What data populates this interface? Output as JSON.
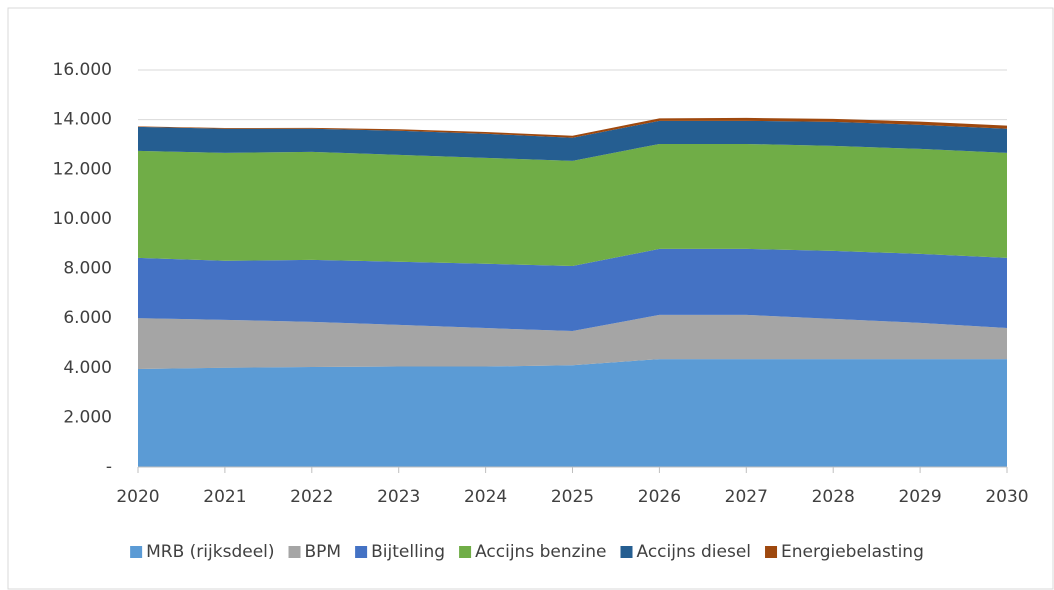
{
  "chart_data": {
    "type": "stacked_area",
    "categories": [
      "2020",
      "2021",
      "2022",
      "2023",
      "2024",
      "2025",
      "2026",
      "2027",
      "2028",
      "2029",
      "2030"
    ],
    "series": [
      {
        "name": "MRB (rijksdeel)",
        "color": "#5b9bd5",
        "values": [
          3950,
          4000,
          4030,
          4050,
          4050,
          4100,
          4350,
          4350,
          4350,
          4350,
          4350
        ]
      },
      {
        "name": "BPM",
        "color": "#a5a5a5",
        "values": [
          2050,
          1930,
          1820,
          1680,
          1550,
          1380,
          1780,
          1780,
          1620,
          1460,
          1250
        ]
      },
      {
        "name": "Bijtelling",
        "color": "#4472c4",
        "values": [
          2430,
          2380,
          2500,
          2540,
          2590,
          2620,
          2660,
          2660,
          2740,
          2780,
          2830
        ]
      },
      {
        "name": "Accijns benzine",
        "color": "#70ad47",
        "values": [
          4310,
          4350,
          4350,
          4310,
          4270,
          4240,
          4230,
          4230,
          4230,
          4230,
          4230
        ]
      },
      {
        "name": "Accijns diesel",
        "color": "#255e91",
        "values": [
          970,
          970,
          930,
          970,
          970,
          930,
          930,
          930,
          970,
          970,
          970
        ]
      },
      {
        "name": "Energiebelasting",
        "color": "#9e480e",
        "values": [
          20,
          30,
          40,
          60,
          70,
          80,
          100,
          120,
          120,
          130,
          130
        ]
      }
    ],
    "ylim": [
      0,
      16000
    ],
    "yticks": [
      {
        "value": 0,
        "label": "-"
      },
      {
        "value": 2000,
        "label": "2.000"
      },
      {
        "value": 4000,
        "label": "4.000"
      },
      {
        "value": 6000,
        "label": "6.000"
      },
      {
        "value": 8000,
        "label": "8.000"
      },
      {
        "value": 10000,
        "label": "10.000"
      },
      {
        "value": 12000,
        "label": "12.000"
      },
      {
        "value": 14000,
        "label": "14.000"
      },
      {
        "value": 16000,
        "label": "16.000"
      }
    ],
    "grid": true,
    "legend": "bottom"
  }
}
